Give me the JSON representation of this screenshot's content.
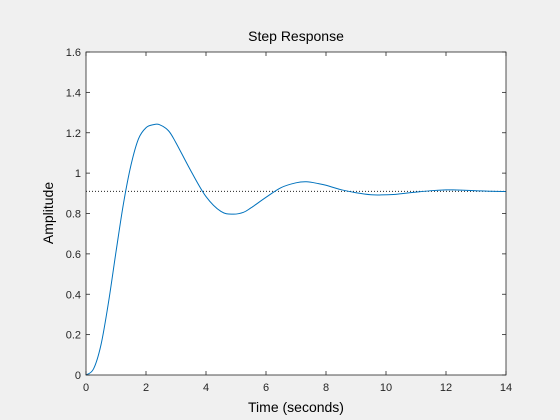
{
  "chart_data": {
    "type": "line",
    "title": "Step Response",
    "xlabel": "Time (seconds)",
    "ylabel": "Amplitude",
    "xlim": [
      0,
      14
    ],
    "ylim": [
      0,
      1.6
    ],
    "x_ticks": [
      "0",
      "2",
      "4",
      "6",
      "8",
      "10",
      "12",
      "14"
    ],
    "y_ticks": [
      "0",
      "0.2",
      "0.4",
      "0.6",
      "0.8",
      "1",
      "1.2",
      "1.4",
      "1.6"
    ],
    "grid": false,
    "series": [
      {
        "color": "#0072bd",
        "x": [
          0,
          0.25,
          0.5,
          0.75,
          1.0,
          1.25,
          1.5,
          1.75,
          2.0,
          2.25,
          2.45,
          2.75,
          3.0,
          3.5,
          4.0,
          4.5,
          4.9,
          5.25,
          5.5,
          6.0,
          6.5,
          7.0,
          7.35,
          7.75,
          8.0,
          8.5,
          9.0,
          9.5,
          9.85,
          10.25,
          10.5,
          11.0,
          11.5,
          12.0,
          12.25,
          12.5,
          13.0,
          13.5,
          14.0
        ],
        "y": [
          0,
          0.03,
          0.15,
          0.36,
          0.61,
          0.85,
          1.04,
          1.17,
          1.225,
          1.24,
          1.24,
          1.21,
          1.15,
          1.01,
          0.884,
          0.81,
          0.797,
          0.806,
          0.828,
          0.88,
          0.928,
          0.952,
          0.957,
          0.948,
          0.94,
          0.918,
          0.903,
          0.893,
          0.892,
          0.894,
          0.898,
          0.906,
          0.913,
          0.917,
          0.917,
          0.916,
          0.913,
          0.91,
          0.909
        ]
      }
    ],
    "steady_state": {
      "y": 0.91,
      "color": "#000000",
      "style": "dotted"
    }
  }
}
